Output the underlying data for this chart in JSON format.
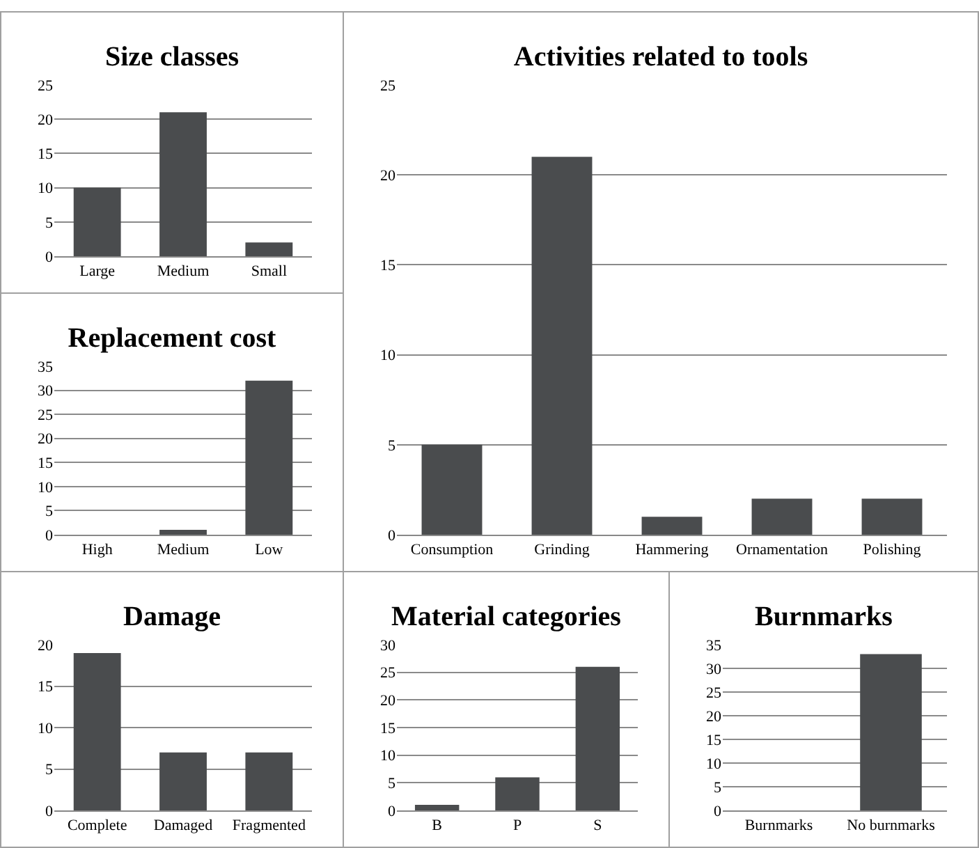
{
  "chart_data": [
    {
      "type": "bar",
      "title": "Size classes",
      "categories": [
        "Large",
        "Medium",
        "Small"
      ],
      "values": [
        10,
        21,
        2
      ],
      "color": "#4a4c4e",
      "ylim": [
        0,
        25
      ],
      "yticks": [
        0,
        5,
        10,
        15,
        20,
        25
      ],
      "grid": "y"
    },
    {
      "type": "bar",
      "title": "Activities related to tools",
      "categories": [
        "Consumption",
        "Grinding",
        "Hammering",
        "Ornamentation",
        "Polishing"
      ],
      "values": [
        5,
        21,
        1,
        2,
        2
      ],
      "color": "#4a4c4e",
      "ylim": [
        0,
        25
      ],
      "yticks": [
        0,
        5,
        10,
        15,
        20,
        25
      ],
      "grid": "y"
    },
    {
      "type": "bar",
      "title": "Replacement cost",
      "categories": [
        "High",
        "Medium",
        "Low"
      ],
      "values": [
        0,
        1,
        32
      ],
      "color": "#4a4c4e",
      "ylim": [
        0,
        35
      ],
      "yticks": [
        0,
        5,
        10,
        15,
        20,
        25,
        30,
        35
      ],
      "grid": "y"
    },
    {
      "type": "bar",
      "title": "Damage",
      "categories": [
        "Complete",
        "Damaged",
        "Fragmented"
      ],
      "values": [
        19,
        7,
        7
      ],
      "color": "#4a4c4e",
      "ylim": [
        0,
        20
      ],
      "yticks": [
        0,
        5,
        10,
        15,
        20
      ],
      "grid": "y"
    },
    {
      "type": "bar",
      "title": "Material categories",
      "categories": [
        "B",
        "P",
        "S"
      ],
      "values": [
        1,
        6,
        26
      ],
      "color": "#4a4c4e",
      "ylim": [
        0,
        30
      ],
      "yticks": [
        0,
        5,
        10,
        15,
        20,
        25,
        30
      ],
      "grid": "y"
    },
    {
      "type": "bar",
      "title": "Burnmarks",
      "categories": [
        "Burnmarks",
        "No burnmarks"
      ],
      "values": [
        0,
        33
      ],
      "color": "#4a4c4e",
      "ylim": [
        0,
        35
      ],
      "yticks": [
        0,
        5,
        10,
        15,
        20,
        25,
        30,
        35
      ],
      "grid": "y"
    }
  ]
}
